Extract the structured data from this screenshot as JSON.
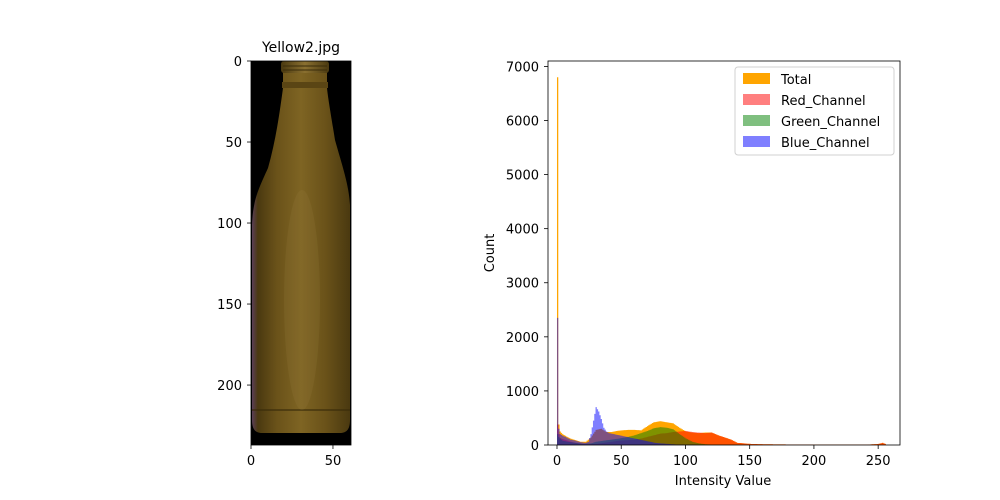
{
  "chart_data": [
    {
      "type": "image",
      "title": "Yellow2.jpg",
      "xticks": [
        0,
        50
      ],
      "yticks": [
        0,
        50,
        100,
        150,
        200
      ],
      "xlim": [
        0,
        61
      ],
      "ylim": [
        237,
        0
      ],
      "colors": {
        "background": "#000000",
        "bottle_light": "#7e6423",
        "bottle_mid": "#6a5219",
        "bottle_dark": "#4a3910",
        "edge_tint": "#5a3e57"
      }
    },
    {
      "type": "histogram",
      "xlabel": "Intensity Value",
      "ylabel": "Count",
      "xlim": [
        -7,
        267
      ],
      "ylim": [
        0,
        7100
      ],
      "xticks": [
        0,
        50,
        100,
        150,
        200,
        250
      ],
      "yticks": [
        0,
        1000,
        2000,
        3000,
        4000,
        5000,
        6000,
        7000
      ],
      "legend_position": "top-right",
      "series": [
        {
          "name": "Total",
          "color": "#ffa500",
          "opacity": 1.0,
          "points": [
            [
              0,
              6800
            ],
            [
              1,
              380
            ],
            [
              2,
              250
            ],
            [
              4,
              200
            ],
            [
              6,
              170
            ],
            [
              10,
              120
            ],
            [
              14,
              90
            ],
            [
              18,
              60
            ],
            [
              22,
              60
            ],
            [
              26,
              140
            ],
            [
              30,
              280
            ],
            [
              34,
              300
            ],
            [
              38,
              240
            ],
            [
              42,
              240
            ],
            [
              46,
              260
            ],
            [
              50,
              270
            ],
            [
              55,
              280
            ],
            [
              60,
              280
            ],
            [
              65,
              270
            ],
            [
              70,
              350
            ],
            [
              75,
              420
            ],
            [
              80,
              440
            ],
            [
              85,
              420
            ],
            [
              90,
              400
            ],
            [
              95,
              320
            ],
            [
              100,
              250
            ],
            [
              105,
              230
            ],
            [
              110,
              220
            ],
            [
              115,
              230
            ],
            [
              120,
              230
            ],
            [
              125,
              180
            ],
            [
              130,
              140
            ],
            [
              135,
              100
            ],
            [
              140,
              40
            ],
            [
              145,
              30
            ],
            [
              150,
              20
            ],
            [
              160,
              15
            ],
            [
              170,
              12
            ],
            [
              180,
              10
            ],
            [
              200,
              8
            ],
            [
              220,
              6
            ],
            [
              240,
              6
            ],
            [
              250,
              20
            ],
            [
              253,
              40
            ],
            [
              255,
              20
            ]
          ]
        },
        {
          "name": "Red_Channel",
          "color": "#ff0000",
          "opacity": 0.5,
          "points": [
            [
              0,
              380
            ],
            [
              1,
              200
            ],
            [
              2,
              130
            ],
            [
              4,
              110
            ],
            [
              8,
              80
            ],
            [
              12,
              50
            ],
            [
              18,
              20
            ],
            [
              24,
              15
            ],
            [
              30,
              20
            ],
            [
              36,
              40
            ],
            [
              42,
              60
            ],
            [
              48,
              80
            ],
            [
              55,
              90
            ],
            [
              60,
              100
            ],
            [
              65,
              120
            ],
            [
              70,
              150
            ],
            [
              75,
              180
            ],
            [
              80,
              210
            ],
            [
              85,
              220
            ],
            [
              90,
              240
            ],
            [
              95,
              250
            ],
            [
              100,
              260
            ],
            [
              105,
              240
            ],
            [
              110,
              230
            ],
            [
              115,
              220
            ],
            [
              120,
              230
            ],
            [
              125,
              180
            ],
            [
              130,
              140
            ],
            [
              135,
              100
            ],
            [
              140,
              40
            ],
            [
              145,
              30
            ],
            [
              150,
              20
            ],
            [
              160,
              15
            ],
            [
              170,
              12
            ],
            [
              180,
              10
            ],
            [
              200,
              8
            ],
            [
              220,
              6
            ],
            [
              240,
              6
            ],
            [
              250,
              20
            ],
            [
              253,
              40
            ],
            [
              255,
              20
            ]
          ]
        },
        {
          "name": "Green_Channel",
          "color": "#008000",
          "opacity": 0.5,
          "points": [
            [
              0,
              200
            ],
            [
              1,
              150
            ],
            [
              2,
              120
            ],
            [
              4,
              80
            ],
            [
              8,
              60
            ],
            [
              14,
              40
            ],
            [
              20,
              20
            ],
            [
              26,
              30
            ],
            [
              30,
              60
            ],
            [
              36,
              80
            ],
            [
              42,
              100
            ],
            [
              48,
              120
            ],
            [
              55,
              150
            ],
            [
              60,
              180
            ],
            [
              65,
              220
            ],
            [
              70,
              260
            ],
            [
              75,
              310
            ],
            [
              80,
              330
            ],
            [
              85,
              320
            ],
            [
              90,
              290
            ],
            [
              95,
              200
            ],
            [
              100,
              120
            ],
            [
              105,
              60
            ],
            [
              110,
              30
            ],
            [
              115,
              15
            ],
            [
              120,
              8
            ],
            [
              130,
              5
            ],
            [
              140,
              3
            ]
          ]
        },
        {
          "name": "Blue_Channel",
          "color": "#0000ff",
          "opacity": 0.5,
          "points": [
            [
              0,
              2350
            ],
            [
              1,
              300
            ],
            [
              2,
              200
            ],
            [
              4,
              170
            ],
            [
              6,
              150
            ],
            [
              10,
              100
            ],
            [
              14,
              80
            ],
            [
              18,
              50
            ],
            [
              22,
              40
            ],
            [
              24,
              60
            ],
            [
              26,
              200
            ],
            [
              28,
              450
            ],
            [
              30,
              700
            ],
            [
              32,
              620
            ],
            [
              34,
              480
            ],
            [
              36,
              320
            ],
            [
              38,
              250
            ],
            [
              40,
              220
            ],
            [
              44,
              200
            ],
            [
              48,
              180
            ],
            [
              52,
              160
            ],
            [
              56,
              140
            ],
            [
              60,
              120
            ],
            [
              64,
              100
            ],
            [
              68,
              80
            ],
            [
              72,
              60
            ],
            [
              76,
              40
            ],
            [
              80,
              30
            ],
            [
              86,
              20
            ],
            [
              92,
              10
            ],
            [
              100,
              5
            ],
            [
              110,
              3
            ]
          ]
        }
      ]
    }
  ]
}
